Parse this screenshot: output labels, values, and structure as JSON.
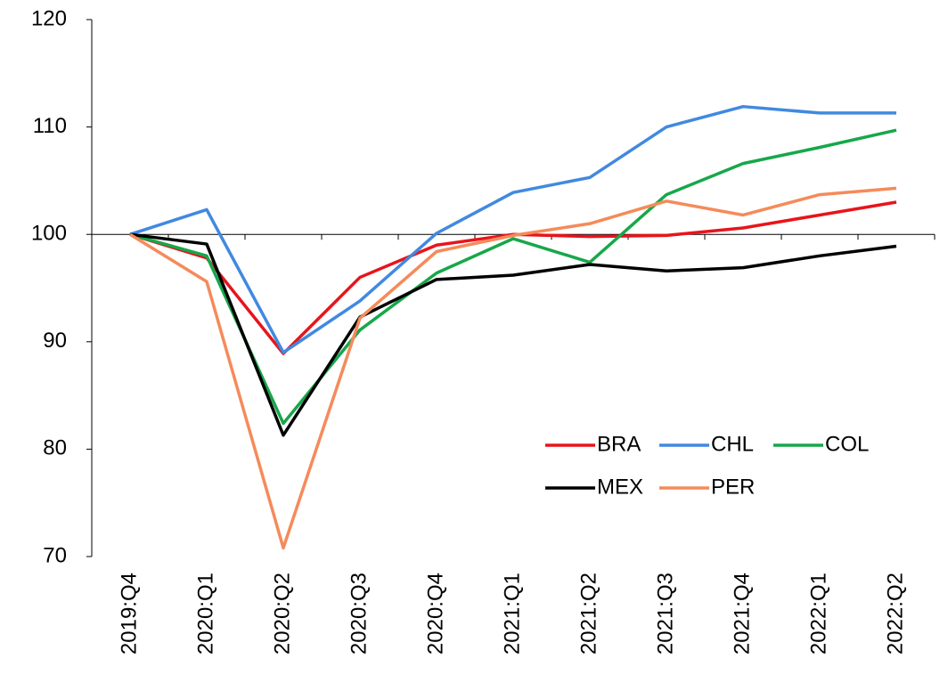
{
  "chart_data": {
    "type": "line",
    "categories": [
      "2019:Q4",
      "2020:Q1",
      "2020:Q2",
      "2020:Q3",
      "2020:Q4",
      "2021:Q1",
      "2021:Q2",
      "2021:Q3",
      "2021:Q4",
      "2022:Q1",
      "2022:Q2"
    ],
    "series": [
      {
        "name": "BRA",
        "color": "#e8141b",
        "values": [
          100,
          97.8,
          88.9,
          96.0,
          99.0,
          100.0,
          99.8,
          99.9,
          100.6,
          101.8,
          103.0
        ]
      },
      {
        "name": "CHL",
        "color": "#4189e0",
        "values": [
          100,
          102.3,
          89.0,
          93.8,
          100.1,
          103.9,
          105.3,
          110.0,
          111.9,
          111.3,
          111.3
        ]
      },
      {
        "name": "COL",
        "color": "#17a74a",
        "values": [
          100,
          98.0,
          82.4,
          91.1,
          96.4,
          99.6,
          97.4,
          103.7,
          106.6,
          108.1,
          109.7
        ]
      },
      {
        "name": "MEX",
        "color": "#000000",
        "values": [
          100,
          99.1,
          81.3,
          92.3,
          95.8,
          96.2,
          97.2,
          96.6,
          96.9,
          98.0,
          98.9
        ]
      },
      {
        "name": "PER",
        "color": "#f48b5a",
        "values": [
          100,
          95.6,
          70.8,
          92.2,
          98.4,
          99.9,
          101.0,
          103.1,
          101.8,
          103.7,
          104.3
        ]
      }
    ],
    "ylim": [
      70,
      120
    ],
    "yticks": [
      70,
      80,
      90,
      100,
      110,
      120
    ],
    "xaxis_at": 100,
    "legend": "lower right",
    "grid": false
  }
}
